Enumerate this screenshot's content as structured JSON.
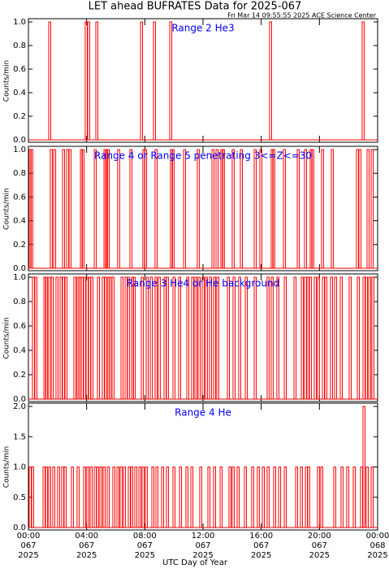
{
  "title": "LET ahead BUFRATES Data for 2025-067",
  "subtitle": "Fri Mar 14 09:55:55 2025 ACE Science Center",
  "xlabel": "UTC Day of Year",
  "chart_data": [
    {
      "type": "bar",
      "annotation": "Range 2 He3",
      "ylabel": "Counts/min",
      "color": "#ff0000",
      "annotation_color": "#0000ff",
      "x": [
        1.45,
        3.96,
        4.13,
        4.69,
        7.76,
        8.65,
        9.77,
        16.63,
        22.99
      ],
      "values": [
        1,
        1,
        1,
        1,
        1,
        1,
        1,
        1,
        1
      ],
      "xlim": [
        0,
        24
      ],
      "ylim": [
        0,
        1
      ],
      "yticks": [
        {
          "value": 0,
          "label": "0.0"
        },
        {
          "value": 0.2,
          "label": "0.2"
        },
        {
          "value": 0.4,
          "label": "0.4"
        },
        {
          "value": 0.6,
          "label": "0.6"
        },
        {
          "value": 0.8,
          "label": "0.8"
        },
        {
          "value": 1,
          "label": "1.0"
        }
      ]
    },
    {
      "type": "bar",
      "annotation": "Range 4 or Range 5 penetrating 3<=Z<=30",
      "ylabel": "Counts/min",
      "color": "#ff0000",
      "annotation_color": "#0000ff",
      "x": [
        0.11,
        0.22,
        1.56,
        1.79,
        2.4,
        2.68,
        2.85,
        3.63,
        3.74,
        4.58,
        5.25,
        5.36,
        5.47,
        6.19,
        7.03,
        7.92,
        8.04,
        8.76,
        9.82,
        9.93,
        10.72,
        11.66,
        12.67,
        12.95,
        13.28,
        13.39,
        14.06,
        14.62,
        15.57,
        15.96,
        16.74,
        16.85,
        17.58,
        18.53,
        19.03,
        19.42,
        19.53,
        20.2,
        20.87,
        22.6,
        22.77,
        23.33,
        23.61
      ],
      "values": [
        1,
        1,
        1,
        1,
        1,
        1,
        1,
        1,
        1,
        1,
        1,
        1,
        1,
        1,
        1,
        1,
        1,
        1,
        1,
        1,
        1,
        1,
        1,
        1,
        1,
        1,
        1,
        1,
        1,
        1,
        1,
        1,
        1,
        1,
        1,
        1,
        1,
        1,
        1,
        1,
        1,
        1,
        1
      ],
      "xlim": [
        0,
        24
      ],
      "ylim": [
        0,
        1
      ],
      "yticks": [
        {
          "value": 0,
          "label": "0.0"
        },
        {
          "value": 0.2,
          "label": "0.2"
        },
        {
          "value": 0.4,
          "label": "0.4"
        },
        {
          "value": 0.6,
          "label": "0.6"
        },
        {
          "value": 0.8,
          "label": "0.8"
        },
        {
          "value": 1,
          "label": "1.0"
        }
      ]
    },
    {
      "type": "bar",
      "annotation": "Range 3 He4 or He background",
      "ylabel": "Counts/min",
      "color": "#ff0000",
      "annotation_color": "#0000ff",
      "x": [
        0.33,
        0.5,
        1.12,
        1.23,
        1.45,
        1.62,
        1.95,
        2.23,
        2.4,
        2.57,
        3.18,
        3.4,
        3.52,
        3.68,
        3.85,
        4.02,
        4.19,
        4.35,
        4.8,
        5.13,
        5.3,
        5.52,
        5.64,
        5.8,
        6.42,
        6.7,
        6.86,
        7.14,
        7.26,
        7.81,
        8.15,
        8.43,
        8.76,
        8.98,
        9.38,
        9.54,
        9.99,
        10.38,
        10.94,
        11.27,
        11.5,
        11.72,
        12.0,
        12.22,
        12.5,
        12.78,
        13.0,
        13.73,
        14.12,
        14.51,
        14.96,
        15.57,
        16.46,
        16.74,
        17.13,
        17.64,
        18.31,
        18.81,
        19.03,
        19.2,
        19.37,
        19.7,
        19.92,
        20.26,
        20.43,
        20.82,
        21.1,
        21.49,
        22.1,
        22.66,
        23.05,
        23.22,
        23.44,
        23.66
      ],
      "values": [
        1,
        1,
        1,
        1,
        1,
        1,
        1,
        1,
        1,
        1,
        1,
        1,
        1,
        1,
        1,
        1,
        1,
        1,
        1,
        1,
        1,
        1,
        1,
        1,
        1,
        1,
        1,
        1,
        1,
        1,
        1,
        1,
        1,
        1,
        1,
        1,
        1,
        1,
        1,
        1,
        1,
        1,
        1,
        1,
        1,
        1,
        1,
        1,
        1,
        1,
        1,
        1,
        1,
        1,
        1,
        1,
        1,
        1,
        1,
        1,
        1,
        1,
        1,
        1,
        1,
        1,
        1,
        1,
        1,
        1,
        1,
        1,
        1,
        1
      ],
      "xlim": [
        0,
        24
      ],
      "ylim": [
        0,
        1
      ],
      "yticks": [
        {
          "value": 0,
          "label": "0.0"
        },
        {
          "value": 0.2,
          "label": "0.2"
        },
        {
          "value": 0.4,
          "label": "0.4"
        },
        {
          "value": 0.6,
          "label": "0.6"
        },
        {
          "value": 0.8,
          "label": "0.8"
        },
        {
          "value": 1,
          "label": "1.0"
        }
      ]
    },
    {
      "type": "bar",
      "annotation": "Range 4 He",
      "ylabel": "Counts/min",
      "color": "#ff0000",
      "annotation_color": "#0000ff",
      "x": [
        0.11,
        0.28,
        1.06,
        1.23,
        1.45,
        1.73,
        2.06,
        2.34,
        2.51,
        3.01,
        3.4,
        3.85,
        4.07,
        4.3,
        4.58,
        4.74,
        4.97,
        5.19,
        5.47,
        5.86,
        6.14,
        6.36,
        6.59,
        6.92,
        7.09,
        7.37,
        7.65,
        7.87,
        8.09,
        8.54,
        8.82,
        9.21,
        9.54,
        9.99,
        10.44,
        10.88,
        11.22,
        11.83,
        12.39,
        12.78,
        13.23,
        13.84,
        14.06,
        14.4,
        14.9,
        15.4,
        15.79,
        16.13,
        16.46,
        16.91,
        17.25,
        17.64,
        18.42,
        18.75,
        19.09,
        19.25,
        19.92,
        20.15,
        21.04,
        21.54,
        21.93,
        22.38,
        22.88,
        23.05,
        23.27,
        23.61
      ],
      "values": [
        1,
        1,
        1,
        1,
        1,
        1,
        1,
        1,
        1,
        1,
        1,
        1,
        1,
        1,
        1,
        1,
        1,
        1,
        1,
        1,
        1,
        1,
        1,
        1,
        1,
        1,
        1,
        1,
        1,
        1,
        1,
        1,
        1,
        1,
        1,
        1,
        1,
        1,
        1,
        1,
        1,
        1,
        1,
        1,
        1,
        1,
        1,
        1,
        1,
        1,
        1,
        1,
        1,
        1,
        1,
        1,
        1,
        1,
        1,
        1,
        1,
        1,
        1,
        2,
        1,
        1
      ],
      "xlim": [
        0,
        24
      ],
      "ylim": [
        0,
        2
      ],
      "yticks": [
        {
          "value": 0,
          "label": "0.0"
        },
        {
          "value": 0.5,
          "label": "0.5"
        },
        {
          "value": 1,
          "label": "1.0"
        },
        {
          "value": 1.5,
          "label": "1.5"
        },
        {
          "value": 2,
          "label": "2.0"
        }
      ],
      "xticks": [
        {
          "value": 0,
          "label": [
            "00:00",
            "067",
            "2025"
          ]
        },
        {
          "value": 4,
          "label": [
            "04:00",
            "067",
            "2025"
          ]
        },
        {
          "value": 8,
          "label": [
            "08:00",
            "067",
            "2025"
          ]
        },
        {
          "value": 12,
          "label": [
            "12:00",
            "067",
            "2025"
          ]
        },
        {
          "value": 16,
          "label": [
            "16:00",
            "067",
            "2025"
          ]
        },
        {
          "value": 20,
          "label": [
            "20:00",
            "067",
            "2025"
          ]
        },
        {
          "value": 24,
          "label": [
            "00:00",
            "068",
            "2025"
          ]
        }
      ]
    }
  ]
}
